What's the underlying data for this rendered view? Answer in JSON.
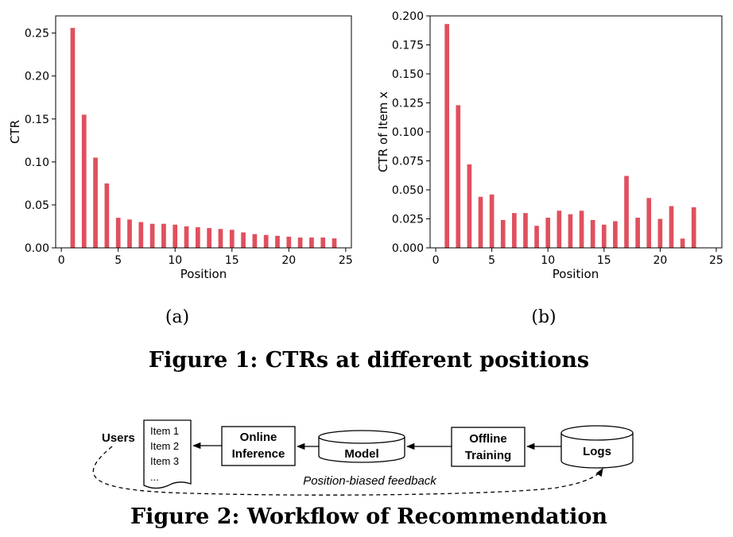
{
  "chart_data": [
    {
      "type": "bar",
      "subplot_label": "(a)",
      "xlabel": "Position",
      "ylabel": "CTR",
      "xlim": [
        -0.5,
        25.5
      ],
      "ylim": [
        0,
        0.27
      ],
      "xticks": [
        "0",
        "5",
        "10",
        "15",
        "20",
        "25"
      ],
      "yticks": [
        "0.00",
        "0.05",
        "0.10",
        "0.15",
        "0.20",
        "0.25"
      ],
      "bar_color": "#e0505e",
      "x": [
        1,
        2,
        3,
        4,
        5,
        6,
        7,
        8,
        9,
        10,
        11,
        12,
        13,
        14,
        15,
        16,
        17,
        18,
        19,
        20,
        21,
        22,
        23,
        24
      ],
      "values": [
        0.256,
        0.155,
        0.105,
        0.075,
        0.035,
        0.033,
        0.03,
        0.028,
        0.028,
        0.027,
        0.025,
        0.024,
        0.023,
        0.022,
        0.021,
        0.018,
        0.016,
        0.015,
        0.014,
        0.013,
        0.012,
        0.012,
        0.012,
        0.011
      ]
    },
    {
      "type": "bar",
      "subplot_label": "(b)",
      "xlabel": "Position",
      "ylabel": "CTR of Item x",
      "xlim": [
        -0.5,
        25.5
      ],
      "ylim": [
        0,
        0.2
      ],
      "xticks": [
        "0",
        "5",
        "10",
        "15",
        "20",
        "25"
      ],
      "yticks": [
        "0.000",
        "0.025",
        "0.050",
        "0.075",
        "0.100",
        "0.125",
        "0.150",
        "0.175",
        "0.200"
      ],
      "bar_color": "#e0505e",
      "x": [
        1,
        2,
        3,
        4,
        5,
        6,
        7,
        8,
        9,
        10,
        11,
        12,
        13,
        14,
        15,
        16,
        17,
        18,
        19,
        20,
        21,
        22,
        23
      ],
      "values": [
        0.193,
        0.123,
        0.072,
        0.044,
        0.046,
        0.024,
        0.03,
        0.03,
        0.019,
        0.026,
        0.032,
        0.029,
        0.032,
        0.024,
        0.02,
        0.023,
        0.062,
        0.026,
        0.043,
        0.025,
        0.036,
        0.008,
        0.035
      ]
    }
  ],
  "figure1_caption": "Figure 1: CTRs at different positions",
  "figure2_caption": "Figure 2: Workflow of Recommendation",
  "workflow": {
    "users": "Users",
    "items": [
      "Item 1",
      "Item 2",
      "Item 3",
      "..."
    ],
    "online_inference": [
      "Online",
      "Inference"
    ],
    "model": "Model",
    "offline_training": [
      "Offline",
      "Training"
    ],
    "logs": "Logs",
    "feedback": "Position-biased feedback"
  }
}
